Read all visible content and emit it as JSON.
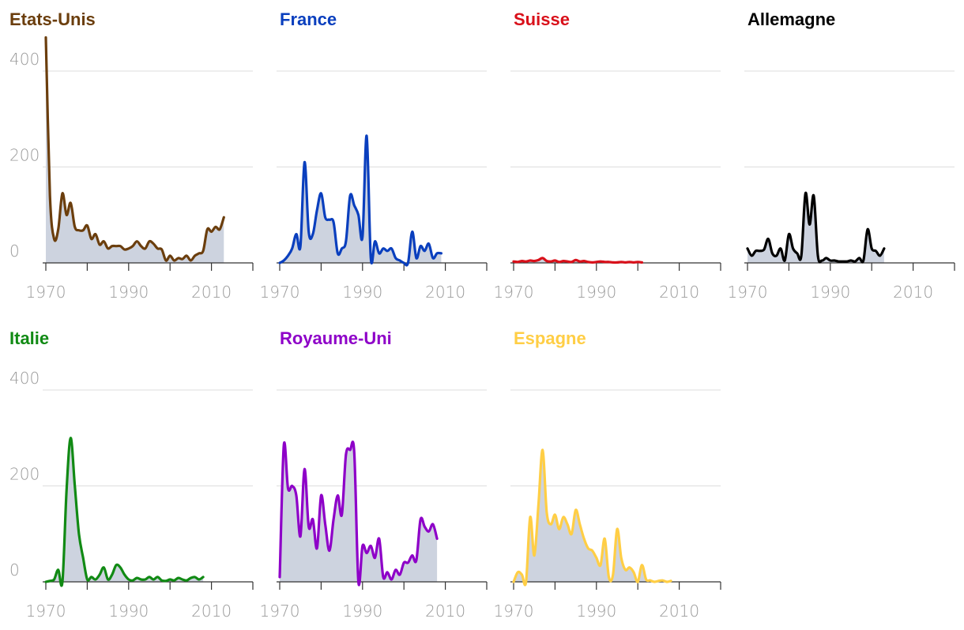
{
  "chart_data": [
    {
      "type": "area",
      "title": "Etats-Unis",
      "color": "#6b3e0d",
      "xlim": [
        1970,
        2020
      ],
      "ylim": [
        0,
        400
      ],
      "y_ticks": [
        0,
        200,
        400
      ],
      "x_ticks": [
        1970,
        1990,
        2010
      ],
      "show_y_labels": true,
      "points": [
        [
          1970,
          470
        ],
        [
          1971,
          140
        ],
        [
          1972,
          50
        ],
        [
          1973,
          70
        ],
        [
          1974,
          145
        ],
        [
          1975,
          100
        ],
        [
          1976,
          125
        ],
        [
          1977,
          75
        ],
        [
          1978,
          68
        ],
        [
          1979,
          68
        ],
        [
          1980,
          78
        ],
        [
          1981,
          50
        ],
        [
          1982,
          60
        ],
        [
          1983,
          38
        ],
        [
          1984,
          45
        ],
        [
          1985,
          30
        ],
        [
          1986,
          35
        ],
        [
          1987,
          35
        ],
        [
          1988,
          35
        ],
        [
          1989,
          28
        ],
        [
          1990,
          30
        ],
        [
          1991,
          35
        ],
        [
          1992,
          45
        ],
        [
          1993,
          35
        ],
        [
          1994,
          30
        ],
        [
          1995,
          45
        ],
        [
          1996,
          40
        ],
        [
          1997,
          30
        ],
        [
          1998,
          28
        ],
        [
          1999,
          5
        ],
        [
          2000,
          15
        ],
        [
          2001,
          5
        ],
        [
          2002,
          10
        ],
        [
          2003,
          8
        ],
        [
          2004,
          15
        ],
        [
          2005,
          5
        ],
        [
          2006,
          15
        ],
        [
          2007,
          20
        ],
        [
          2008,
          25
        ],
        [
          2009,
          70
        ],
        [
          2010,
          65
        ],
        [
          2011,
          75
        ],
        [
          2012,
          70
        ],
        [
          2013,
          95
        ]
      ]
    },
    {
      "type": "area",
      "title": "France",
      "color": "#0a3fbe",
      "xlim": [
        1970,
        2020
      ],
      "ylim": [
        0,
        400
      ],
      "y_ticks": [
        0,
        200,
        400
      ],
      "x_ticks": [
        1970,
        1990,
        2010
      ],
      "show_y_labels": false,
      "points": [
        [
          1970,
          0
        ],
        [
          1971,
          5
        ],
        [
          1972,
          15
        ],
        [
          1973,
          30
        ],
        [
          1974,
          60
        ],
        [
          1975,
          35
        ],
        [
          1976,
          210
        ],
        [
          1977,
          65
        ],
        [
          1978,
          60
        ],
        [
          1979,
          110
        ],
        [
          1980,
          145
        ],
        [
          1981,
          95
        ],
        [
          1982,
          90
        ],
        [
          1983,
          85
        ],
        [
          1984,
          20
        ],
        [
          1985,
          30
        ],
        [
          1986,
          45
        ],
        [
          1987,
          140
        ],
        [
          1988,
          120
        ],
        [
          1989,
          100
        ],
        [
          1990,
          55
        ],
        [
          1991,
          265
        ],
        [
          1992,
          10
        ],
        [
          1993,
          45
        ],
        [
          1994,
          20
        ],
        [
          1995,
          30
        ],
        [
          1996,
          25
        ],
        [
          1997,
          30
        ],
        [
          1998,
          10
        ],
        [
          1999,
          5
        ],
        [
          2000,
          0
        ],
        [
          2001,
          0
        ],
        [
          2002,
          65
        ],
        [
          2003,
          10
        ],
        [
          2004,
          35
        ],
        [
          2005,
          25
        ],
        [
          2006,
          40
        ],
        [
          2007,
          10
        ],
        [
          2008,
          20
        ],
        [
          2009,
          20
        ]
      ]
    },
    {
      "type": "area",
      "title": "Suisse",
      "color": "#d9101a",
      "xlim": [
        1970,
        2020
      ],
      "ylim": [
        0,
        400
      ],
      "y_ticks": [
        0,
        200,
        400
      ],
      "x_ticks": [
        1970,
        1990,
        2010
      ],
      "show_y_labels": false,
      "points": [
        [
          1970,
          3
        ],
        [
          1971,
          2
        ],
        [
          1972,
          4
        ],
        [
          1973,
          3
        ],
        [
          1974,
          5
        ],
        [
          1975,
          4
        ],
        [
          1976,
          6
        ],
        [
          1977,
          10
        ],
        [
          1978,
          4
        ],
        [
          1979,
          3
        ],
        [
          1980,
          5
        ],
        [
          1981,
          2
        ],
        [
          1982,
          4
        ],
        [
          1983,
          3
        ],
        [
          1984,
          2
        ],
        [
          1985,
          6
        ],
        [
          1986,
          3
        ],
        [
          1987,
          4
        ],
        [
          1988,
          2
        ],
        [
          1989,
          1
        ],
        [
          1990,
          2
        ],
        [
          1991,
          3
        ],
        [
          1992,
          2
        ],
        [
          1993,
          2
        ],
        [
          1994,
          1
        ],
        [
          1995,
          1
        ],
        [
          1996,
          2
        ],
        [
          1997,
          1
        ],
        [
          1998,
          2
        ],
        [
          1999,
          1
        ],
        [
          2000,
          2
        ],
        [
          2001,
          1
        ]
      ]
    },
    {
      "type": "area",
      "title": "Allemagne",
      "color": "#000000",
      "xlim": [
        1970,
        2020
      ],
      "ylim": [
        0,
        400
      ],
      "y_ticks": [
        0,
        200,
        400
      ],
      "x_ticks": [
        1970,
        1990,
        2010
      ],
      "show_y_labels": false,
      "points": [
        [
          1970,
          30
        ],
        [
          1971,
          15
        ],
        [
          1972,
          25
        ],
        [
          1973,
          25
        ],
        [
          1974,
          28
        ],
        [
          1975,
          50
        ],
        [
          1976,
          20
        ],
        [
          1977,
          15
        ],
        [
          1978,
          30
        ],
        [
          1979,
          5
        ],
        [
          1980,
          60
        ],
        [
          1981,
          30
        ],
        [
          1982,
          20
        ],
        [
          1983,
          15
        ],
        [
          1984,
          145
        ],
        [
          1985,
          80
        ],
        [
          1986,
          140
        ],
        [
          1987,
          15
        ],
        [
          1988,
          5
        ],
        [
          1989,
          10
        ],
        [
          1990,
          5
        ],
        [
          1991,
          5
        ],
        [
          1992,
          3
        ],
        [
          1993,
          3
        ],
        [
          1994,
          3
        ],
        [
          1995,
          5
        ],
        [
          1996,
          3
        ],
        [
          1997,
          10
        ],
        [
          1998,
          5
        ],
        [
          1999,
          70
        ],
        [
          2000,
          30
        ],
        [
          2001,
          25
        ],
        [
          2002,
          15
        ],
        [
          2003,
          30
        ]
      ]
    },
    {
      "type": "area",
      "title": "Italie",
      "color": "#118a14",
      "xlim": [
        1970,
        2020
      ],
      "ylim": [
        0,
        400
      ],
      "y_ticks": [
        0,
        200,
        400
      ],
      "x_ticks": [
        1970,
        1990,
        2010
      ],
      "show_y_labels": true,
      "points": [
        [
          1970,
          0
        ],
        [
          1971,
          2
        ],
        [
          1972,
          5
        ],
        [
          1973,
          25
        ],
        [
          1974,
          0
        ],
        [
          1975,
          190
        ],
        [
          1976,
          300
        ],
        [
          1977,
          200
        ],
        [
          1978,
          100
        ],
        [
          1979,
          50
        ],
        [
          1980,
          5
        ],
        [
          1981,
          10
        ],
        [
          1982,
          5
        ],
        [
          1983,
          15
        ],
        [
          1984,
          30
        ],
        [
          1985,
          5
        ],
        [
          1986,
          15
        ],
        [
          1987,
          35
        ],
        [
          1988,
          30
        ],
        [
          1989,
          15
        ],
        [
          1990,
          5
        ],
        [
          1991,
          3
        ],
        [
          1992,
          8
        ],
        [
          1993,
          5
        ],
        [
          1994,
          5
        ],
        [
          1995,
          10
        ],
        [
          1996,
          5
        ],
        [
          1997,
          10
        ],
        [
          1998,
          3
        ],
        [
          1999,
          2
        ],
        [
          2000,
          5
        ],
        [
          2001,
          3
        ],
        [
          2002,
          8
        ],
        [
          2003,
          5
        ],
        [
          2004,
          3
        ],
        [
          2005,
          8
        ],
        [
          2006,
          10
        ],
        [
          2007,
          5
        ],
        [
          2008,
          10
        ]
      ]
    },
    {
      "type": "area",
      "title": "Royaume-Uni",
      "color": "#8e00c8",
      "xlim": [
        1970,
        2020
      ],
      "ylim": [
        0,
        400
      ],
      "y_ticks": [
        0,
        200,
        400
      ],
      "x_ticks": [
        1970,
        1990,
        2010
      ],
      "show_y_labels": false,
      "points": [
        [
          1970,
          10
        ],
        [
          1971,
          285
        ],
        [
          1972,
          195
        ],
        [
          1973,
          200
        ],
        [
          1974,
          180
        ],
        [
          1975,
          95
        ],
        [
          1976,
          235
        ],
        [
          1977,
          115
        ],
        [
          1978,
          130
        ],
        [
          1979,
          70
        ],
        [
          1980,
          180
        ],
        [
          1981,
          120
        ],
        [
          1982,
          65
        ],
        [
          1983,
          130
        ],
        [
          1984,
          180
        ],
        [
          1985,
          140
        ],
        [
          1986,
          265
        ],
        [
          1987,
          275
        ],
        [
          1988,
          270
        ],
        [
          1989,
          0
        ],
        [
          1990,
          75
        ],
        [
          1991,
          60
        ],
        [
          1992,
          75
        ],
        [
          1993,
          50
        ],
        [
          1994,
          90
        ],
        [
          1995,
          10
        ],
        [
          1996,
          20
        ],
        [
          1997,
          5
        ],
        [
          1998,
          25
        ],
        [
          1999,
          15
        ],
        [
          2000,
          40
        ],
        [
          2001,
          40
        ],
        [
          2002,
          55
        ],
        [
          2003,
          45
        ],
        [
          2004,
          130
        ],
        [
          2005,
          115
        ],
        [
          2006,
          105
        ],
        [
          2007,
          120
        ],
        [
          2008,
          90
        ]
      ]
    },
    {
      "type": "area",
      "title": "Espagne",
      "color": "#ffce45",
      "xlim": [
        1970,
        2020
      ],
      "ylim": [
        0,
        400
      ],
      "y_ticks": [
        0,
        200,
        400
      ],
      "x_ticks": [
        1970,
        1990,
        2010
      ],
      "show_y_labels": false,
      "points": [
        [
          1970,
          0
        ],
        [
          1971,
          20
        ],
        [
          1972,
          15
        ],
        [
          1973,
          0
        ],
        [
          1974,
          135
        ],
        [
          1975,
          55
        ],
        [
          1976,
          160
        ],
        [
          1977,
          275
        ],
        [
          1978,
          145
        ],
        [
          1979,
          120
        ],
        [
          1980,
          140
        ],
        [
          1981,
          110
        ],
        [
          1982,
          135
        ],
        [
          1983,
          120
        ],
        [
          1984,
          100
        ],
        [
          1985,
          150
        ],
        [
          1986,
          120
        ],
        [
          1987,
          90
        ],
        [
          1988,
          70
        ],
        [
          1989,
          65
        ],
        [
          1990,
          50
        ],
        [
          1991,
          35
        ],
        [
          1992,
          90
        ],
        [
          1993,
          10
        ],
        [
          1994,
          15
        ],
        [
          1995,
          110
        ],
        [
          1996,
          50
        ],
        [
          1997,
          25
        ],
        [
          1998,
          30
        ],
        [
          1999,
          20
        ],
        [
          2000,
          0
        ],
        [
          2001,
          35
        ],
        [
          2002,
          5
        ],
        [
          2003,
          3
        ],
        [
          2004,
          0
        ],
        [
          2005,
          2
        ],
        [
          2006,
          3
        ],
        [
          2007,
          0
        ],
        [
          2008,
          2
        ]
      ]
    }
  ]
}
